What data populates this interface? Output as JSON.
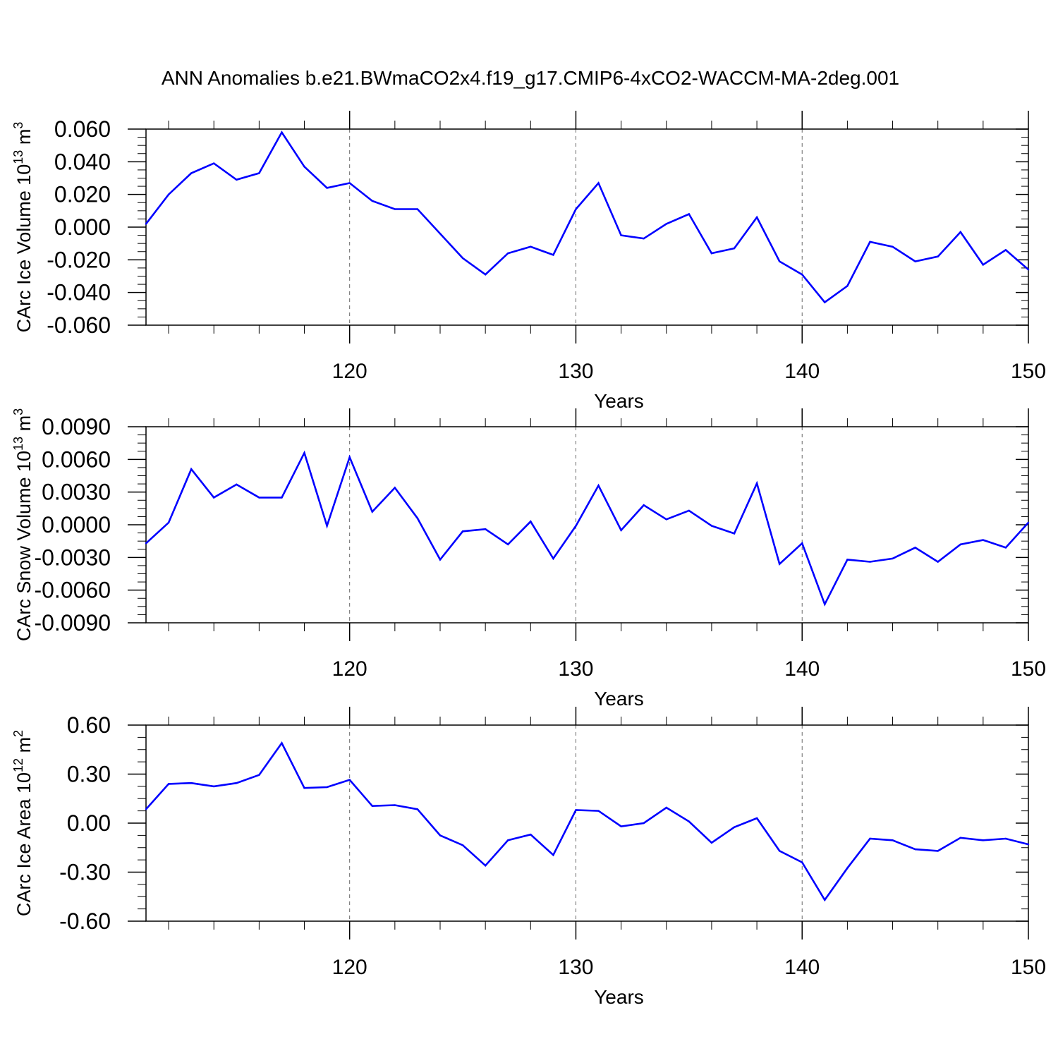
{
  "title": "ANN Anomalies b.e21.BWmaCO2x4.f19_g17.CMIP6-4xCO2-WACCM-MA-2deg.001",
  "line_color": "#0000ff",
  "chart_data": [
    {
      "type": "line",
      "ylabel": {
        "text": "CArc Ice Volume 10",
        "sup": "13",
        "unit": " m",
        "unit_sup": "3"
      },
      "xlabel": "Years",
      "xlim": [
        111,
        150
      ],
      "ylim": [
        -0.06,
        0.06
      ],
      "x_ticks": [
        120,
        130,
        140,
        150
      ],
      "y_ticks": [
        -0.06,
        -0.04,
        -0.02,
        0.0,
        0.02,
        0.04,
        0.06
      ],
      "y_tick_labels": [
        "-0.060",
        "-0.040",
        "-0.020",
        "0.000",
        "0.020",
        "0.040",
        "0.060"
      ],
      "x_grid": [
        120,
        130,
        140
      ],
      "x": [
        111,
        112,
        113,
        114,
        115,
        116,
        117,
        118,
        119,
        120,
        121,
        122,
        123,
        124,
        125,
        126,
        127,
        128,
        129,
        130,
        131,
        132,
        133,
        134,
        135,
        136,
        137,
        138,
        139,
        140,
        141,
        142,
        143,
        144,
        145,
        146,
        147,
        148,
        149,
        150
      ],
      "values": [
        0.002,
        0.02,
        0.033,
        0.039,
        0.029,
        0.033,
        0.058,
        0.037,
        0.024,
        0.027,
        0.016,
        0.011,
        0.011,
        -0.004,
        -0.019,
        -0.029,
        -0.016,
        -0.012,
        -0.017,
        0.011,
        0.027,
        -0.005,
        -0.007,
        0.002,
        0.008,
        -0.016,
        -0.013,
        0.006,
        -0.021,
        -0.029,
        -0.046,
        -0.036,
        -0.009,
        -0.012,
        -0.021,
        -0.018,
        -0.003,
        -0.023,
        -0.014,
        -0.026
      ]
    },
    {
      "type": "line",
      "ylabel": {
        "text": "CArc Snow Volume 10",
        "sup": "13",
        "unit": " m",
        "unit_sup": "3"
      },
      "xlabel": "Years",
      "xlim": [
        111,
        150
      ],
      "ylim": [
        -0.009,
        0.009
      ],
      "x_ticks": [
        120,
        130,
        140,
        150
      ],
      "y_ticks": [
        -0.009,
        -0.006,
        -0.003,
        0.0,
        0.003,
        0.006,
        0.009
      ],
      "y_tick_labels": [
        "-0.0090",
        "-0.0060",
        "-0.0030",
        "0.0000",
        "0.0030",
        "0.0060",
        "0.0090"
      ],
      "x_grid": [
        120,
        130,
        140
      ],
      "x": [
        111,
        112,
        113,
        114,
        115,
        116,
        117,
        118,
        119,
        120,
        121,
        122,
        123,
        124,
        125,
        126,
        127,
        128,
        129,
        130,
        131,
        132,
        133,
        134,
        135,
        136,
        137,
        138,
        139,
        140,
        141,
        142,
        143,
        144,
        145,
        146,
        147,
        148,
        149,
        150
      ],
      "values": [
        -0.0017,
        0.0002,
        0.0051,
        0.0025,
        0.0037,
        0.0025,
        0.0025,
        0.0066,
        -0.0001,
        0.0062,
        0.0012,
        0.0034,
        0.0006,
        -0.0032,
        -0.0006,
        -0.0004,
        -0.0018,
        0.0003,
        -0.0031,
        -0.0001,
        0.0036,
        -0.0005,
        0.0018,
        0.0005,
        0.0013,
        -0.0001,
        -0.0008,
        0.0038,
        -0.0036,
        -0.0017,
        -0.0073,
        -0.0032,
        -0.0034,
        -0.0031,
        -0.0021,
        -0.0034,
        -0.0018,
        -0.0014,
        -0.0021,
        0.0002
      ]
    },
    {
      "type": "line",
      "ylabel": {
        "text": "CArc Ice Area 10",
        "sup": "12",
        "unit": " m",
        "unit_sup": "2"
      },
      "xlabel": "Years",
      "xlim": [
        111,
        150
      ],
      "ylim": [
        -0.6,
        0.6
      ],
      "x_ticks": [
        120,
        130,
        140,
        150
      ],
      "y_ticks": [
        -0.6,
        -0.3,
        0.0,
        0.3,
        0.6
      ],
      "y_tick_labels": [
        "-0.60",
        "-0.30",
        "0.00",
        "0.30",
        "0.60"
      ],
      "x_grid": [
        120,
        130,
        140
      ],
      "x": [
        111,
        112,
        113,
        114,
        115,
        116,
        117,
        118,
        119,
        120,
        121,
        122,
        123,
        124,
        125,
        126,
        127,
        128,
        129,
        130,
        131,
        132,
        133,
        134,
        135,
        136,
        137,
        138,
        139,
        140,
        141,
        142,
        143,
        144,
        145,
        146,
        147,
        148,
        149,
        150
      ],
      "values": [
        0.085,
        0.24,
        0.245,
        0.225,
        0.245,
        0.295,
        0.49,
        0.215,
        0.22,
        0.265,
        0.105,
        0.11,
        0.085,
        -0.075,
        -0.135,
        -0.26,
        -0.105,
        -0.07,
        -0.195,
        0.08,
        0.075,
        -0.02,
        -0.0,
        0.095,
        0.01,
        -0.12,
        -0.025,
        0.03,
        -0.17,
        -0.24,
        -0.47,
        -0.275,
        -0.095,
        -0.105,
        -0.16,
        -0.17,
        -0.09,
        -0.105,
        -0.095,
        -0.13
      ]
    }
  ]
}
